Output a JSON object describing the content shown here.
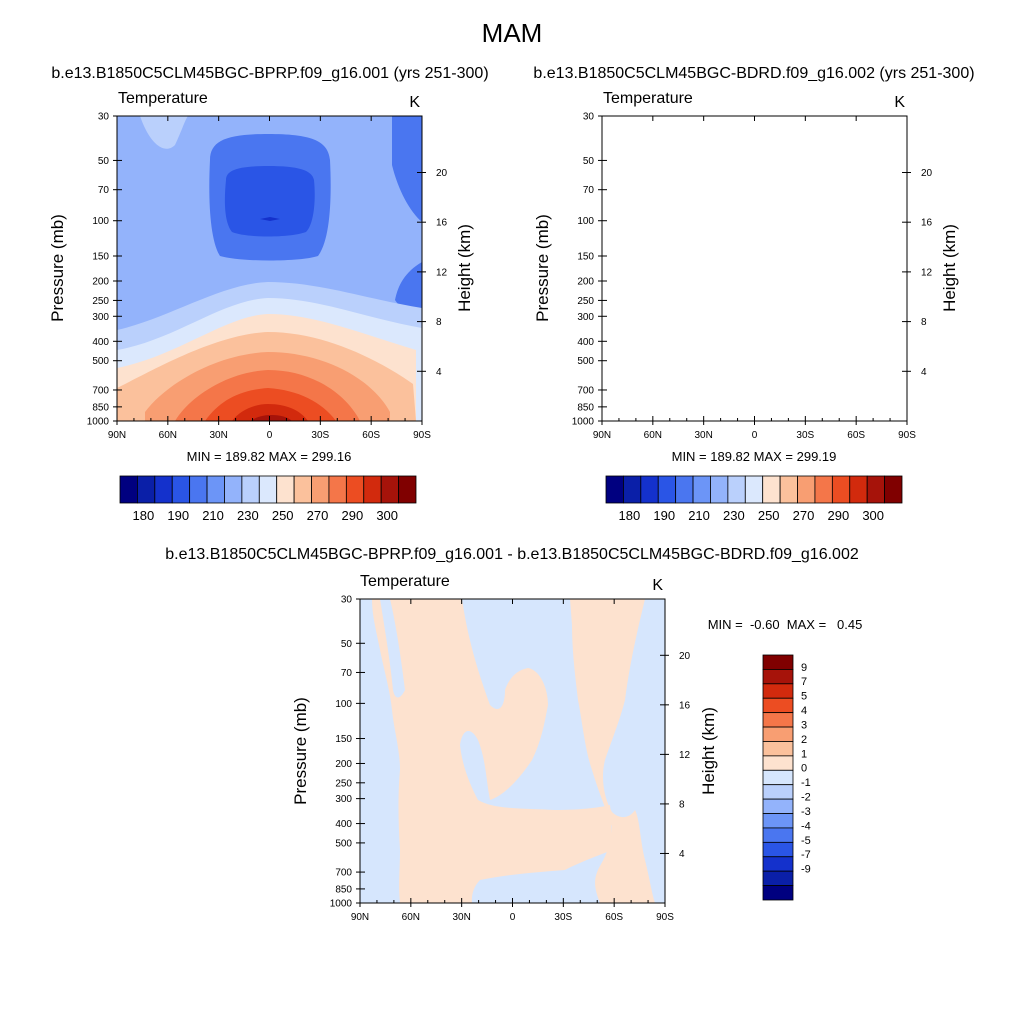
{
  "figure": {
    "title": "MAM",
    "left_title": "b.e13.B1850C5CLM45BGC-BPRP.f09_g16.001 (yrs 251-300)",
    "right_title": "b.e13.B1850C5CLM45BGC-BDRD.f09_g16.002 (yrs 251-300)",
    "diff_title": "b.e13.B1850C5CLM45BGC-BPRP.f09_g16.001 - b.e13.B1850C5CLM45BGC-BDRD.f09_g16.002"
  },
  "colors": {
    "abs_levels": [
      "#000080",
      "#0a1fa8",
      "#1431cc",
      "#2a55e6",
      "#4a76f0",
      "#6c95f7",
      "#93b3fb",
      "#bad0fc",
      "#dbe8fd",
      "#fde2cf",
      "#fbc19c",
      "#f89e72",
      "#f47649",
      "#ec4d22",
      "#d22a0d",
      "#a6130a",
      "#800000"
    ],
    "diff_levels": [
      "#000080",
      "#0a1fa8",
      "#1431cc",
      "#2a55e6",
      "#4a76f0",
      "#6c95f7",
      "#93b3fb",
      "#bad0fc",
      "#d6e6fd",
      "#fde2cf",
      "#fbc19c",
      "#f89e72",
      "#f47649",
      "#ec4d22",
      "#d22a0d",
      "#a6130a",
      "#800000"
    ]
  },
  "chart_data": [
    {
      "type": "contour",
      "id": "left",
      "title": "b.e13.B1850C5CLM45BGC-BPRP.f09_g16.001 (yrs 251-300)",
      "left_string": "Temperature",
      "right_string": "K",
      "ylabel": "Pressure (mb)",
      "ylabel_right": "Height (km)",
      "x_ticks": [
        "90N",
        "60N",
        "30N",
        "0",
        "30S",
        "60S",
        "90S"
      ],
      "y_ticks": [
        30,
        50,
        70,
        100,
        150,
        200,
        250,
        300,
        400,
        500,
        700,
        850,
        1000
      ],
      "height_ticks": [
        20,
        16,
        12,
        8,
        4
      ],
      "stats_label": "MIN = 189.82  MAX = 299.16",
      "min": 189.82,
      "max": 299.16,
      "colorbar_labels": [
        "180",
        "190",
        "210",
        "230",
        "250",
        "270",
        "290",
        "300"
      ]
    },
    {
      "type": "contour",
      "id": "right",
      "title": "b.e13.B1850C5CLM45BGC-BDRD.f09_g16.002 (yrs 251-300)",
      "left_string": "Temperature",
      "right_string": "K",
      "ylabel": "Pressure (mb)",
      "ylabel_right": "Height (km)",
      "x_ticks": [
        "90N",
        "60N",
        "30N",
        "0",
        "30S",
        "60S",
        "90S"
      ],
      "y_ticks": [
        30,
        50,
        70,
        100,
        150,
        200,
        250,
        300,
        400,
        500,
        700,
        850,
        1000
      ],
      "height_ticks": [
        20,
        16,
        12,
        8,
        4
      ],
      "stats_label": "MIN = 189.82  MAX = 299.19",
      "min": 189.82,
      "max": 299.19,
      "colorbar_labels": [
        "180",
        "190",
        "210",
        "230",
        "250",
        "270",
        "290",
        "300"
      ]
    },
    {
      "type": "contour",
      "id": "diff",
      "title": "b.e13.B1850C5CLM45BGC-BPRP.f09_g16.001 - b.e13.B1850C5CLM45BGC-BDRD.f09_g16.002",
      "left_string": "Temperature",
      "right_string": "K",
      "ylabel": "Pressure (mb)",
      "ylabel_right": "Height (km)",
      "x_ticks": [
        "90N",
        "60N",
        "30N",
        "0",
        "30S",
        "60S",
        "90S"
      ],
      "y_ticks": [
        30,
        50,
        70,
        100,
        150,
        200,
        250,
        300,
        400,
        500,
        700,
        850,
        1000
      ],
      "height_ticks": [
        20,
        16,
        12,
        8,
        4
      ],
      "stats_label": "MIN =  -0.60  MAX =   0.45",
      "min": -0.6,
      "max": 0.45,
      "colorbar_labels": [
        "9",
        "7",
        "5",
        "4",
        "3",
        "2",
        "1",
        "0",
        "-1",
        "-2",
        "-3",
        "-4",
        "-5",
        "-7",
        "-9"
      ]
    }
  ]
}
